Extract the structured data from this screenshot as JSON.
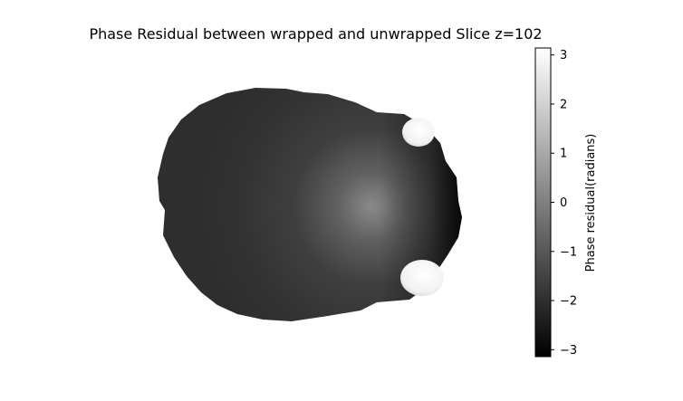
{
  "chart_data": {
    "type": "heatmap",
    "title": "Phase Residual between wrapped and unwrapped Slice z=102",
    "xlabel": "",
    "ylabel": "",
    "axes_visible": false,
    "colormap": "gray",
    "grid": false,
    "colorbar": {
      "label": "Phase residual(radians)",
      "range": [
        -3.14159,
        3.14159
      ],
      "ticks": [
        3,
        2,
        1,
        0,
        -1,
        -2,
        -3
      ],
      "tick_labels": [
        "3",
        "2",
        "1",
        "0",
        "−1",
        "−2",
        "−3"
      ]
    },
    "description_values": {
      "background_region_value": -2.3,
      "central_bright_spot_value": -0.2,
      "lobe_values": 3.0
    }
  }
}
